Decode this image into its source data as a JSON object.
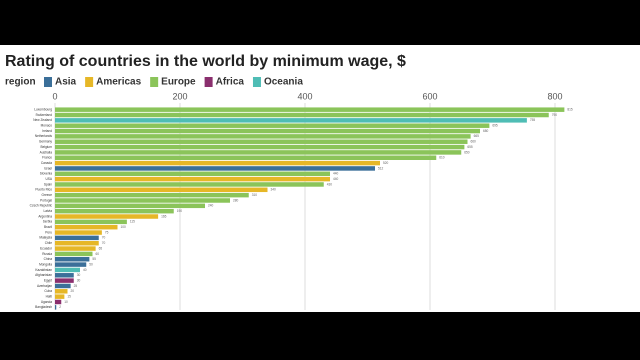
{
  "chart_data": {
    "type": "bar",
    "orientation": "horizontal",
    "title": "Rating of countries in the world by minimum wage, $",
    "legend_title": "region",
    "legend": [
      {
        "name": "Asia",
        "color": "#3b6f99"
      },
      {
        "name": "Americas",
        "color": "#e6b727"
      },
      {
        "name": "Europe",
        "color": "#8bc45a"
      },
      {
        "name": "Africa",
        "color": "#8a2f6e"
      },
      {
        "name": "Oceania",
        "color": "#4fbdb5"
      }
    ],
    "categories": [
      "Luxembourg",
      "Switzerland",
      "New Zealand",
      "Monaco",
      "Ireland",
      "Netherlands",
      "Germany",
      "Belgium",
      "Australia",
      "France",
      "Canada",
      "Israel",
      "Slovenia",
      "USA",
      "Spain",
      "Puerto Rico",
      "Greece",
      "Portugal",
      "Czech Republic",
      "Latvia",
      "Argentina",
      "Serbia",
      "Brazil",
      "Peru",
      "Malaysia",
      "Chile",
      "Ecuador",
      "Russia",
      "China",
      "Mongolia",
      "Kazakhstan",
      "Afghanistan",
      "Egypt",
      "Azerbaijan",
      "Cuba",
      "Haiti",
      "Uganda",
      "Bangladesh"
    ],
    "values": [
      815,
      790,
      755,
      695,
      680,
      665,
      660,
      655,
      650,
      610,
      520,
      512,
      440,
      440,
      430,
      340,
      310,
      280,
      240,
      190,
      165,
      115,
      100,
      75,
      70,
      70,
      65,
      60,
      55,
      50,
      40,
      30,
      30,
      25,
      20,
      15,
      10,
      2
    ],
    "regions": [
      "Europe",
      "Europe",
      "Oceania",
      "Europe",
      "Europe",
      "Europe",
      "Europe",
      "Europe",
      "Europe",
      "Europe",
      "Americas",
      "Asia",
      "Europe",
      "Americas",
      "Europe",
      "Americas",
      "Europe",
      "Europe",
      "Europe",
      "Europe",
      "Americas",
      "Europe",
      "Americas",
      "Americas",
      "Asia",
      "Americas",
      "Americas",
      "Europe",
      "Asia",
      "Asia",
      "Oceania",
      "Asia",
      "Africa",
      "Asia",
      "Americas",
      "Americas",
      "Africa",
      "Asia"
    ],
    "xlim": [
      0,
      840
    ],
    "xticks": [
      0,
      200,
      400,
      600,
      800
    ],
    "grid": true
  }
}
